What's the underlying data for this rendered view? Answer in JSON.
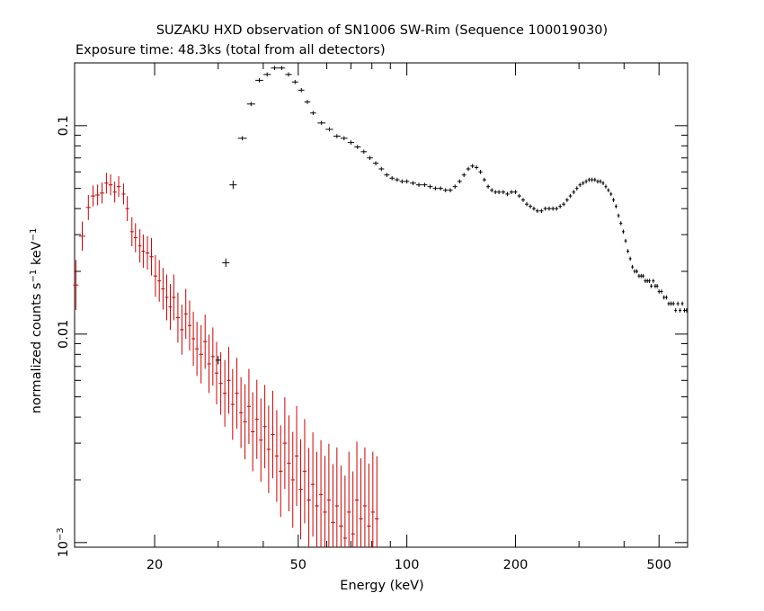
{
  "chart_data": {
    "type": "scatter",
    "title": "SUZAKU HXD observation of SN1006 SW-Rim (Sequence 100019030)",
    "subtitle": "Exposure time: 48.3ks (total from all detectors)",
    "xlabel": "Energy (keV)",
    "ylabel": {
      "base": "normalized counts s",
      "sup1": "−1",
      "mid": " keV",
      "sup2": "−1"
    },
    "x_scale": "log",
    "y_scale": "log",
    "xlim": [
      12,
      600
    ],
    "ylim": [
      0.00095,
      0.2
    ],
    "x_ticks": [
      {
        "value": 20,
        "label": "20"
      },
      {
        "value": 50,
        "label": "50"
      },
      {
        "value": 100,
        "label": "100"
      },
      {
        "value": 200,
        "label": "200"
      },
      {
        "value": 500,
        "label": "500"
      }
    ],
    "y_ticks": [
      {
        "value": 0.001,
        "label": "10",
        "sup": "−3"
      },
      {
        "value": 0.01,
        "label": "0.01"
      },
      {
        "value": 0.1,
        "label": "0.1"
      }
    ],
    "series": [
      {
        "color": "#cc0000",
        "points": [
          [
            12.1,
            0.0172,
            0.12
          ],
          [
            12.6,
            0.0295,
            0.07
          ],
          [
            13.1,
            0.0405,
            0.06
          ],
          [
            13.5,
            0.046,
            0.05
          ],
          [
            13.9,
            0.0465,
            0.05
          ],
          [
            14.3,
            0.0475,
            0.05
          ],
          [
            14.7,
            0.053,
            0.05
          ],
          [
            15.1,
            0.052,
            0.05
          ],
          [
            15.5,
            0.048,
            0.05
          ],
          [
            15.9,
            0.051,
            0.05
          ],
          [
            16.4,
            0.047,
            0.05
          ],
          [
            16.8,
            0.04,
            0.06
          ],
          [
            17.3,
            0.031,
            0.07
          ],
          [
            17.7,
            0.029,
            0.07
          ],
          [
            18.2,
            0.0265,
            0.08
          ],
          [
            18.6,
            0.025,
            0.08
          ],
          [
            19.1,
            0.0245,
            0.08
          ],
          [
            19.6,
            0.0235,
            0.09
          ],
          [
            20.1,
            0.019,
            0.1
          ],
          [
            20.6,
            0.018,
            0.1
          ],
          [
            21.1,
            0.0165,
            0.1
          ],
          [
            21.6,
            0.015,
            0.11
          ],
          [
            22.1,
            0.0135,
            0.11
          ],
          [
            22.6,
            0.015,
            0.11
          ],
          [
            23.2,
            0.012,
            0.12
          ],
          [
            23.8,
            0.0105,
            0.12
          ],
          [
            24.4,
            0.0125,
            0.12
          ],
          [
            25.0,
            0.011,
            0.12
          ],
          [
            25.6,
            0.0095,
            0.13
          ],
          [
            26.2,
            0.0085,
            0.13
          ],
          [
            26.9,
            0.008,
            0.14
          ],
          [
            27.6,
            0.0092,
            0.13
          ],
          [
            28.3,
            0.0072,
            0.14
          ],
          [
            29.0,
            0.0078,
            0.14
          ],
          [
            29.7,
            0.0065,
            0.15
          ],
          [
            30.5,
            0.0058,
            0.15
          ],
          [
            31.3,
            0.0052,
            0.16
          ],
          [
            32.1,
            0.006,
            0.16
          ],
          [
            32.9,
            0.0046,
            0.17
          ],
          [
            33.8,
            0.0052,
            0.17
          ],
          [
            34.7,
            0.0042,
            0.17
          ],
          [
            35.6,
            0.0038,
            0.18
          ],
          [
            36.5,
            0.0045,
            0.18
          ],
          [
            37.4,
            0.0034,
            0.19
          ],
          [
            38.4,
            0.0039,
            0.19
          ],
          [
            39.4,
            0.0031,
            0.2
          ],
          [
            40.4,
            0.0036,
            0.2
          ],
          [
            41.4,
            0.0028,
            0.21
          ],
          [
            42.5,
            0.0033,
            0.21
          ],
          [
            43.6,
            0.0026,
            0.22
          ],
          [
            44.7,
            0.0022,
            0.22
          ],
          [
            45.9,
            0.003,
            0.22
          ],
          [
            47.1,
            0.0024,
            0.23
          ],
          [
            48.3,
            0.002,
            0.23
          ],
          [
            49.5,
            0.0026,
            0.24
          ],
          [
            50.8,
            0.0018,
            0.24
          ],
          [
            52.1,
            0.0022,
            0.25
          ],
          [
            53.5,
            0.0016,
            0.25
          ],
          [
            54.9,
            0.0019,
            0.25
          ],
          [
            56.3,
            0.0015,
            0.26
          ],
          [
            57.8,
            0.0017,
            0.26
          ],
          [
            59.3,
            0.0014,
            0.27
          ],
          [
            60.8,
            0.0016,
            0.27
          ],
          [
            62.4,
            0.00125,
            0.28
          ],
          [
            64.0,
            0.0015,
            0.28
          ],
          [
            65.7,
            0.0012,
            0.29
          ],
          [
            67.4,
            0.00105,
            0.3
          ],
          [
            69.1,
            0.0014,
            0.29
          ],
          [
            70.9,
            0.0011,
            0.3
          ],
          [
            72.7,
            0.0016,
            0.28
          ],
          [
            74.6,
            0.0013,
            0.29
          ],
          [
            76.5,
            0.0015,
            0.28
          ],
          [
            78.5,
            0.0012,
            0.3
          ],
          [
            80.5,
            0.0014,
            0.29
          ],
          [
            82.6,
            0.0013,
            0.3
          ]
        ]
      },
      {
        "color": "#000000",
        "points": [
          [
            30.0,
            0.0075,
            0.02
          ],
          [
            31.5,
            0.022,
            0.02
          ],
          [
            33.0,
            0.052,
            0.02
          ],
          [
            35.0,
            0.087,
            0.01
          ],
          [
            37.0,
            0.127,
            0.01
          ],
          [
            39.0,
            0.165,
            0.01
          ],
          [
            41.0,
            0.176,
            0.01
          ],
          [
            43.0,
            0.189,
            0.01
          ],
          [
            45.0,
            0.189,
            0.01
          ],
          [
            47.0,
            0.176,
            0.01
          ],
          [
            49.0,
            0.162,
            0.01
          ],
          [
            51.0,
            0.148,
            0.01
          ],
          [
            53.0,
            0.13,
            0.01
          ],
          [
            55.0,
            0.115,
            0.01
          ],
          [
            58.0,
            0.103,
            0.01
          ],
          [
            61.0,
            0.096,
            0.01
          ],
          [
            64.0,
            0.089,
            0.01
          ],
          [
            67.0,
            0.087,
            0.01
          ],
          [
            70.0,
            0.083,
            0.01
          ],
          [
            73.0,
            0.079,
            0.01
          ],
          [
            76.0,
            0.075,
            0.01
          ],
          [
            79.0,
            0.07,
            0.01
          ],
          [
            82.0,
            0.066,
            0.01
          ],
          [
            85.0,
            0.062,
            0.01
          ],
          [
            88.0,
            0.058,
            0.01
          ],
          [
            91.0,
            0.056,
            0.01
          ],
          [
            94.0,
            0.055,
            0.01
          ],
          [
            97.0,
            0.054,
            0.01
          ],
          [
            100.0,
            0.054,
            0.01
          ],
          [
            104.0,
            0.053,
            0.01
          ],
          [
            108.0,
            0.052,
            0.01
          ],
          [
            112.0,
            0.052,
            0.01
          ],
          [
            116.0,
            0.051,
            0.01
          ],
          [
            120.0,
            0.05,
            0.01
          ],
          [
            124.0,
            0.05,
            0.01
          ],
          [
            128.0,
            0.049,
            0.01
          ],
          [
            132.0,
            0.049,
            0.01
          ],
          [
            136.0,
            0.051,
            0.01
          ],
          [
            140.0,
            0.054,
            0.01
          ],
          [
            144.0,
            0.058,
            0.01
          ],
          [
            148.0,
            0.062,
            0.01
          ],
          [
            152.0,
            0.064,
            0.01
          ],
          [
            156.0,
            0.063,
            0.01
          ],
          [
            160.0,
            0.06,
            0.01
          ],
          [
            164.0,
            0.055,
            0.01
          ],
          [
            168.0,
            0.051,
            0.01
          ],
          [
            172.0,
            0.049,
            0.01
          ],
          [
            176.0,
            0.048,
            0.01
          ],
          [
            180.0,
            0.048,
            0.01
          ],
          [
            185.0,
            0.048,
            0.01
          ],
          [
            190.0,
            0.047,
            0.01
          ],
          [
            195.0,
            0.048,
            0.01
          ],
          [
            200.0,
            0.048,
            0.01
          ],
          [
            205.0,
            0.046,
            0.01
          ],
          [
            210.0,
            0.044,
            0.01
          ],
          [
            215.0,
            0.042,
            0.01
          ],
          [
            220.0,
            0.041,
            0.01
          ],
          [
            225.0,
            0.04,
            0.01
          ],
          [
            230.0,
            0.039,
            0.01
          ],
          [
            236.0,
            0.039,
            0.01
          ],
          [
            242.0,
            0.04,
            0.01
          ],
          [
            248.0,
            0.04,
            0.01
          ],
          [
            254.0,
            0.04,
            0.01
          ],
          [
            260.0,
            0.04,
            0.01
          ],
          [
            266.0,
            0.041,
            0.01
          ],
          [
            272.0,
            0.042,
            0.01
          ],
          [
            278.0,
            0.044,
            0.01
          ],
          [
            284.0,
            0.046,
            0.01
          ],
          [
            290.0,
            0.048,
            0.01
          ],
          [
            296.0,
            0.05,
            0.01
          ],
          [
            302.0,
            0.052,
            0.01
          ],
          [
            308.0,
            0.053,
            0.01
          ],
          [
            314.0,
            0.054,
            0.01
          ],
          [
            320.0,
            0.055,
            0.01
          ],
          [
            326.0,
            0.055,
            0.01
          ],
          [
            332.0,
            0.055,
            0.01
          ],
          [
            338.0,
            0.054,
            0.01
          ],
          [
            344.0,
            0.054,
            0.01
          ],
          [
            350.0,
            0.053,
            0.01
          ],
          [
            356.0,
            0.051,
            0.01
          ],
          [
            362.0,
            0.049,
            0.01
          ],
          [
            368.0,
            0.047,
            0.01
          ],
          [
            374.0,
            0.044,
            0.01
          ],
          [
            380.0,
            0.041,
            0.01
          ],
          [
            386.0,
            0.037,
            0.01
          ],
          [
            392.0,
            0.034,
            0.01
          ],
          [
            398.0,
            0.031,
            0.01
          ],
          [
            404.0,
            0.028,
            0.01
          ],
          [
            410.0,
            0.025,
            0.01
          ],
          [
            416.0,
            0.023,
            0.01
          ],
          [
            422.0,
            0.021,
            0.01
          ],
          [
            428.0,
            0.02,
            0.01
          ],
          [
            434.0,
            0.02,
            0.01
          ],
          [
            440.0,
            0.019,
            0.01
          ],
          [
            446.0,
            0.019,
            0.01
          ],
          [
            452.0,
            0.019,
            0.01
          ],
          [
            458.0,
            0.018,
            0.01
          ],
          [
            464.0,
            0.018,
            0.01
          ],
          [
            470.0,
            0.018,
            0.01
          ],
          [
            476.0,
            0.017,
            0.01
          ],
          [
            482.0,
            0.018,
            0.01
          ],
          [
            488.0,
            0.017,
            0.01
          ],
          [
            494.0,
            0.017,
            0.01
          ],
          [
            500.0,
            0.016,
            0.01
          ],
          [
            508.0,
            0.016,
            0.01
          ],
          [
            516.0,
            0.015,
            0.01
          ],
          [
            524.0,
            0.015,
            0.01
          ],
          [
            532.0,
            0.014,
            0.01
          ],
          [
            540.0,
            0.014,
            0.01
          ],
          [
            548.0,
            0.014,
            0.01
          ],
          [
            556.0,
            0.013,
            0.01
          ],
          [
            564.0,
            0.014,
            0.01
          ],
          [
            572.0,
            0.013,
            0.01
          ],
          [
            580.0,
            0.014,
            0.01
          ],
          [
            588.0,
            0.013,
            0.01
          ],
          [
            596.0,
            0.013,
            0.01
          ]
        ]
      }
    ]
  }
}
